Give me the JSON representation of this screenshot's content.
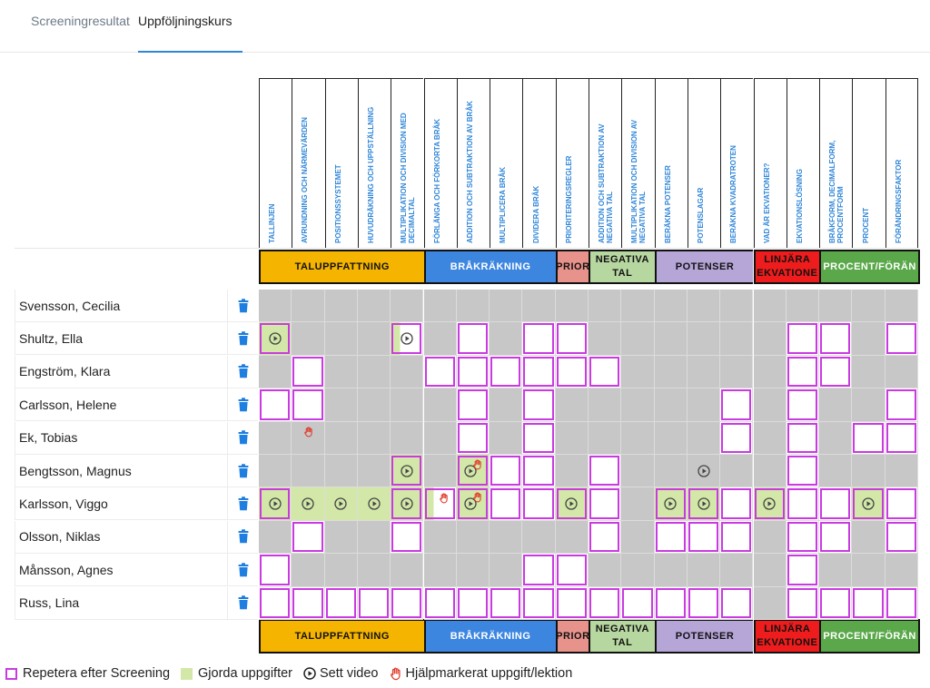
{
  "tabs": [
    {
      "label": "Screeningresultat",
      "active": false
    },
    {
      "label": "Uppföljningskurs",
      "active": true
    }
  ],
  "columns": [
    "TALLINJEN",
    "AVRUNDNING OCH NÄRMEVÄRDEN",
    "POSITIONSSYSTEMET",
    "HUVUDRÄKNING OCH UPPSTÄLLNING",
    "MULTIPLIKATION OCH DIVISION MED DECIMALTAL",
    "FÖRLÄNGA OCH FÖRKORTA BRÅK",
    "ADDITION OCH SUBTRAKTION AV BRÅK",
    "MULTIPLICERA BRÅK",
    "DIVIDERA BRÅK",
    "PRIORITERINGSREGLER",
    "ADDITION OCH SUBTRAKTION AV NEGATIVA TAL",
    "MULTIPLIKATION OCH DIVISION AV NEGATIVA TAL",
    "BERÄKNA POTENSER",
    "POTENSLAGAR",
    "BERÄKNA KVADRATROTEN",
    "VAD ÄR EKVATIONER?",
    "EKVATIONSLÖSNING",
    "BRÅKFORM, DECIMALFORM, PROCENTFORM",
    "PROCENT",
    "FÖRÄNDRINGSFAKTOR"
  ],
  "categories": [
    {
      "label": "TALUPPFATTNING",
      "span": 5,
      "color": "#f5b400",
      "text_color": "#111111"
    },
    {
      "label": "BRÅKRÄKNING",
      "span": 4,
      "color": "#3d86e0",
      "text_color": "#ffffff"
    },
    {
      "label": "PRIOR",
      "span": 1,
      "color": "#e8928c",
      "text_color": "#111111"
    },
    {
      "label": "NEGATIVA TAL",
      "span": 2,
      "color": "#b7d7a0",
      "text_color": "#111111"
    },
    {
      "label": "POTENSER",
      "span": 3,
      "color": "#b6a6d8",
      "text_color": "#111111"
    },
    {
      "label": "LINJÄRA EKVATIONE",
      "span": 2,
      "color": "#ee1c1c",
      "text_color": "#111111"
    },
    {
      "label": "PROCENT/FÖRÄN",
      "span": 3,
      "color": "#5aa84a",
      "text_color": "#ffffff"
    }
  ],
  "students": [
    {
      "name": "Svensson, Cecilia",
      "cells": [
        [
          0,
          0,
          0,
          0
        ],
        [
          0,
          0,
          0,
          0
        ],
        [
          0,
          0,
          0,
          0
        ],
        [
          0,
          0,
          0,
          0
        ],
        [
          0,
          0,
          0,
          0
        ],
        [
          0,
          0,
          0,
          0
        ],
        [
          0,
          0,
          0,
          0
        ],
        [
          0,
          0,
          0,
          0
        ],
        [
          0,
          0,
          0,
          0
        ],
        [
          0,
          0,
          0,
          0
        ],
        [
          0,
          0,
          0,
          0
        ],
        [
          0,
          0,
          0,
          0
        ],
        [
          0,
          0,
          0,
          0
        ],
        [
          0,
          0,
          0,
          0
        ],
        [
          0,
          0,
          0,
          0
        ],
        [
          0,
          0,
          0,
          0
        ],
        [
          0,
          0,
          0,
          0
        ],
        [
          0,
          0,
          0,
          0
        ],
        [
          0,
          0,
          0,
          0
        ],
        [
          0,
          0,
          0,
          0
        ]
      ]
    },
    {
      "name": "Shultz, Ella",
      "cells": [
        [
          1,
          1,
          1,
          0
        ],
        [
          0,
          0,
          0,
          0
        ],
        [
          0,
          0,
          0,
          0
        ],
        [
          0,
          0,
          0,
          0
        ],
        [
          1,
          2,
          1,
          0
        ],
        [
          0,
          0,
          0,
          0
        ],
        [
          1,
          0,
          0,
          0
        ],
        [
          0,
          0,
          0,
          0
        ],
        [
          1,
          0,
          0,
          0
        ],
        [
          1,
          0,
          0,
          0
        ],
        [
          0,
          0,
          0,
          0
        ],
        [
          0,
          0,
          0,
          0
        ],
        [
          0,
          0,
          0,
          0
        ],
        [
          0,
          0,
          0,
          0
        ],
        [
          0,
          0,
          0,
          0
        ],
        [
          0,
          0,
          0,
          0
        ],
        [
          1,
          0,
          0,
          0
        ],
        [
          1,
          0,
          0,
          0
        ],
        [
          0,
          0,
          0,
          0
        ],
        [
          1,
          0,
          0,
          0
        ]
      ]
    },
    {
      "name": "Engström, Klara",
      "cells": [
        [
          0,
          0,
          0,
          0
        ],
        [
          1,
          0,
          0,
          0
        ],
        [
          0,
          0,
          0,
          0
        ],
        [
          0,
          0,
          0,
          0
        ],
        [
          0,
          0,
          0,
          0
        ],
        [
          1,
          0,
          0,
          0
        ],
        [
          1,
          0,
          0,
          0
        ],
        [
          1,
          0,
          0,
          0
        ],
        [
          1,
          0,
          0,
          0
        ],
        [
          1,
          0,
          0,
          0
        ],
        [
          1,
          0,
          0,
          0
        ],
        [
          0,
          0,
          0,
          0
        ],
        [
          0,
          0,
          0,
          0
        ],
        [
          0,
          0,
          0,
          0
        ],
        [
          0,
          0,
          0,
          0
        ],
        [
          0,
          0,
          0,
          0
        ],
        [
          1,
          0,
          0,
          0
        ],
        [
          1,
          0,
          0,
          0
        ],
        [
          0,
          0,
          0,
          0
        ],
        [
          0,
          0,
          0,
          0
        ]
      ]
    },
    {
      "name": "Carlsson, Helene",
      "cells": [
        [
          1,
          0,
          0,
          0
        ],
        [
          1,
          0,
          0,
          0
        ],
        [
          0,
          0,
          0,
          0
        ],
        [
          0,
          0,
          0,
          0
        ],
        [
          0,
          0,
          0,
          0
        ],
        [
          0,
          0,
          0,
          0
        ],
        [
          1,
          0,
          0,
          0
        ],
        [
          0,
          0,
          0,
          0
        ],
        [
          1,
          0,
          0,
          0
        ],
        [
          0,
          0,
          0,
          0
        ],
        [
          0,
          0,
          0,
          0
        ],
        [
          0,
          0,
          0,
          0
        ],
        [
          0,
          0,
          0,
          0
        ],
        [
          0,
          0,
          0,
          0
        ],
        [
          1,
          0,
          0,
          0
        ],
        [
          0,
          0,
          0,
          0
        ],
        [
          1,
          0,
          0,
          0
        ],
        [
          0,
          0,
          0,
          0
        ],
        [
          0,
          0,
          0,
          0
        ],
        [
          1,
          0,
          0,
          0
        ]
      ]
    },
    {
      "name": "Ek, Tobias",
      "cells": [
        [
          0,
          0,
          0,
          0
        ],
        [
          0,
          0,
          0,
          1
        ],
        [
          0,
          0,
          0,
          0
        ],
        [
          0,
          0,
          0,
          0
        ],
        [
          0,
          0,
          0,
          0
        ],
        [
          0,
          0,
          0,
          0
        ],
        [
          1,
          0,
          0,
          0
        ],
        [
          0,
          0,
          0,
          0
        ],
        [
          1,
          0,
          0,
          0
        ],
        [
          0,
          0,
          0,
          0
        ],
        [
          0,
          0,
          0,
          0
        ],
        [
          0,
          0,
          0,
          0
        ],
        [
          0,
          0,
          0,
          0
        ],
        [
          0,
          0,
          0,
          0
        ],
        [
          1,
          0,
          0,
          0
        ],
        [
          0,
          0,
          0,
          0
        ],
        [
          1,
          0,
          0,
          0
        ],
        [
          0,
          0,
          0,
          0
        ],
        [
          1,
          0,
          0,
          0
        ],
        [
          1,
          0,
          0,
          0
        ]
      ]
    },
    {
      "name": "Bengtsson, Magnus",
      "cells": [
        [
          0,
          0,
          0,
          0
        ],
        [
          0,
          0,
          0,
          0
        ],
        [
          0,
          0,
          0,
          0
        ],
        [
          0,
          0,
          0,
          0
        ],
        [
          1,
          1,
          1,
          0
        ],
        [
          0,
          0,
          0,
          0
        ],
        [
          1,
          1,
          1,
          1
        ],
        [
          1,
          0,
          0,
          0
        ],
        [
          1,
          0,
          0,
          0
        ],
        [
          0,
          0,
          0,
          0
        ],
        [
          1,
          0,
          0,
          0
        ],
        [
          0,
          0,
          0,
          0
        ],
        [
          0,
          0,
          0,
          0
        ],
        [
          0,
          0,
          1,
          0
        ],
        [
          0,
          0,
          0,
          0
        ],
        [
          0,
          0,
          0,
          0
        ],
        [
          1,
          0,
          0,
          0
        ],
        [
          0,
          0,
          0,
          0
        ],
        [
          0,
          0,
          0,
          0
        ],
        [
          0,
          0,
          0,
          0
        ]
      ]
    },
    {
      "name": "Karlsson, Viggo",
      "cells": [
        [
          1,
          1,
          1,
          0
        ],
        [
          0,
          1,
          1,
          0
        ],
        [
          0,
          1,
          1,
          0
        ],
        [
          0,
          1,
          1,
          0
        ],
        [
          1,
          1,
          1,
          0
        ],
        [
          1,
          2,
          0,
          1
        ],
        [
          1,
          1,
          1,
          1
        ],
        [
          1,
          0,
          0,
          0
        ],
        [
          1,
          0,
          0,
          0
        ],
        [
          1,
          1,
          1,
          0
        ],
        [
          1,
          0,
          0,
          0
        ],
        [
          0,
          0,
          0,
          0
        ],
        [
          1,
          1,
          1,
          0
        ],
        [
          1,
          1,
          1,
          0
        ],
        [
          1,
          0,
          0,
          0
        ],
        [
          1,
          1,
          1,
          0
        ],
        [
          1,
          0,
          0,
          0
        ],
        [
          1,
          0,
          0,
          0
        ],
        [
          1,
          1,
          1,
          0
        ],
        [
          1,
          0,
          0,
          0
        ]
      ]
    },
    {
      "name": "Olsson, Niklas",
      "cells": [
        [
          0,
          0,
          0,
          0
        ],
        [
          1,
          0,
          0,
          0
        ],
        [
          0,
          0,
          0,
          0
        ],
        [
          0,
          0,
          0,
          0
        ],
        [
          1,
          0,
          0,
          0
        ],
        [
          0,
          0,
          0,
          0
        ],
        [
          0,
          0,
          0,
          0
        ],
        [
          0,
          0,
          0,
          0
        ],
        [
          0,
          0,
          0,
          0
        ],
        [
          0,
          0,
          0,
          0
        ],
        [
          1,
          0,
          0,
          0
        ],
        [
          0,
          0,
          0,
          0
        ],
        [
          1,
          0,
          0,
          0
        ],
        [
          1,
          0,
          0,
          0
        ],
        [
          1,
          0,
          0,
          0
        ],
        [
          0,
          0,
          0,
          0
        ],
        [
          1,
          0,
          0,
          0
        ],
        [
          1,
          0,
          0,
          0
        ],
        [
          0,
          0,
          0,
          0
        ],
        [
          1,
          0,
          0,
          0
        ]
      ]
    },
    {
      "name": "Månsson, Agnes",
      "cells": [
        [
          1,
          0,
          0,
          0
        ],
        [
          0,
          0,
          0,
          0
        ],
        [
          0,
          0,
          0,
          0
        ],
        [
          0,
          0,
          0,
          0
        ],
        [
          0,
          0,
          0,
          0
        ],
        [
          0,
          0,
          0,
          0
        ],
        [
          0,
          0,
          0,
          0
        ],
        [
          0,
          0,
          0,
          0
        ],
        [
          1,
          0,
          0,
          0
        ],
        [
          1,
          0,
          0,
          0
        ],
        [
          0,
          0,
          0,
          0
        ],
        [
          0,
          0,
          0,
          0
        ],
        [
          0,
          0,
          0,
          0
        ],
        [
          0,
          0,
          0,
          0
        ],
        [
          0,
          0,
          0,
          0
        ],
        [
          0,
          0,
          0,
          0
        ],
        [
          1,
          0,
          0,
          0
        ],
        [
          0,
          0,
          0,
          0
        ],
        [
          0,
          0,
          0,
          0
        ],
        [
          0,
          0,
          0,
          0
        ]
      ]
    },
    {
      "name": "Russ, Lina",
      "cells": [
        [
          1,
          0,
          0,
          0
        ],
        [
          1,
          0,
          0,
          0
        ],
        [
          1,
          0,
          0,
          0
        ],
        [
          1,
          0,
          0,
          0
        ],
        [
          1,
          0,
          0,
          0
        ],
        [
          1,
          0,
          0,
          0
        ],
        [
          1,
          0,
          0,
          0
        ],
        [
          1,
          0,
          0,
          0
        ],
        [
          1,
          0,
          0,
          0
        ],
        [
          1,
          0,
          0,
          0
        ],
        [
          1,
          0,
          0,
          0
        ],
        [
          1,
          0,
          0,
          0
        ],
        [
          1,
          0,
          0,
          0
        ],
        [
          1,
          0,
          0,
          0
        ],
        [
          1,
          0,
          0,
          0
        ],
        [
          0,
          0,
          0,
          0
        ],
        [
          1,
          0,
          0,
          0
        ],
        [
          1,
          0,
          0,
          0
        ],
        [
          1,
          0,
          0,
          0
        ],
        [
          1,
          0,
          0,
          0
        ]
      ]
    }
  ],
  "legend": {
    "repeat": "Repetera efter Screening",
    "done": "Gjorda uppgifter",
    "video": "Sett video",
    "help": "Hjälpmarkerat uppgift/lektion"
  },
  "colors": {
    "accent": "#2f86d8",
    "repeat_box": "#c93be0",
    "done_fill": "#d3e8a8",
    "cell_gray": "#c7c7c7",
    "trash": "#1f7fe0",
    "hand": "#e03a2a"
  },
  "icons": {
    "delete": "trash-icon",
    "video": "play-circle-icon",
    "help": "raised-hand-icon"
  }
}
